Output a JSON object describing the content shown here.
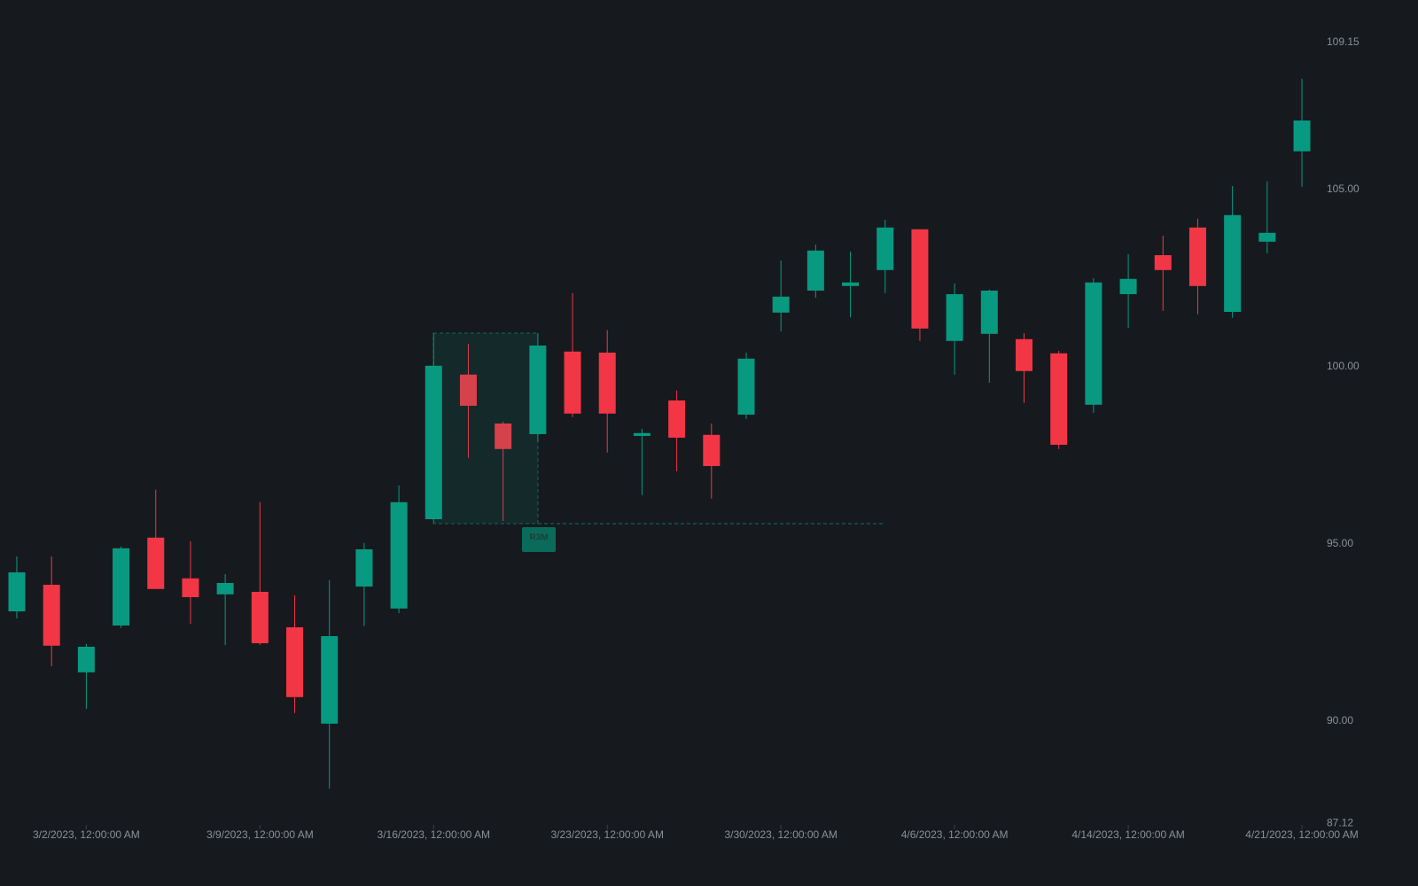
{
  "chart_data": {
    "type": "candlestick",
    "categories": [
      null,
      null,
      "3/2/2023, 12:00:00 AM",
      null,
      null,
      null,
      null,
      "3/9/2023, 12:00:00 AM",
      null,
      null,
      null,
      null,
      "3/16/2023, 12:00:00 AM",
      null,
      null,
      null,
      null,
      "3/23/2023, 12:00:00 AM",
      null,
      null,
      null,
      null,
      "3/30/2023, 12:00:00 AM",
      null,
      null,
      null,
      null,
      "4/6/2023, 12:00:00 AM",
      null,
      null,
      null,
      null,
      "4/14/2023, 12:00:00 AM",
      null,
      null,
      null,
      null,
      "4/21/2023, 12:00:00 AM"
    ],
    "open": [
      93.1,
      93.85,
      91.38,
      92.7,
      95.18,
      94.03,
      93.58,
      93.65,
      92.65,
      89.93,
      93.8,
      93.18,
      95.7,
      99.78,
      98.4,
      98.1,
      100.43,
      100.4,
      98.05,
      99.05,
      98.08,
      98.65,
      101.53,
      102.15,
      102.28,
      102.73,
      103.88,
      100.73,
      100.93,
      100.78,
      100.38,
      98.93,
      102.05,
      103.15,
      103.93,
      101.55,
      103.53,
      106.08
    ],
    "high": [
      94.65,
      94.65,
      92.18,
      94.93,
      96.53,
      95.08,
      94.15,
      96.18,
      93.55,
      93.98,
      95.03,
      96.65,
      100.95,
      100.65,
      98.45,
      100.95,
      102.08,
      101.03,
      98.25,
      99.33,
      98.4,
      100.4,
      103.0,
      103.45,
      103.25,
      104.15,
      103.88,
      102.35,
      102.18,
      100.95,
      100.45,
      102.5,
      103.18,
      103.7,
      104.18,
      105.1,
      105.23,
      108.13
    ],
    "low": [
      92.9,
      91.55,
      90.35,
      92.63,
      93.73,
      92.75,
      92.15,
      92.15,
      90.23,
      88.1,
      92.68,
      93.05,
      95.6,
      97.43,
      95.65,
      97.9,
      98.58,
      97.58,
      96.38,
      97.05,
      96.28,
      98.53,
      101.0,
      101.95,
      101.4,
      102.08,
      100.73,
      99.78,
      99.55,
      98.98,
      97.68,
      98.7,
      101.1,
      101.58,
      101.48,
      101.38,
      103.2,
      105.08
    ],
    "close": [
      94.2,
      92.13,
      92.1,
      94.88,
      93.73,
      93.5,
      93.9,
      92.2,
      90.68,
      92.4,
      94.85,
      96.18,
      100.03,
      98.9,
      97.68,
      100.6,
      98.68,
      98.68,
      98.13,
      98.0,
      97.2,
      100.23,
      101.98,
      103.28,
      102.38,
      103.93,
      101.08,
      102.05,
      102.15,
      99.88,
      97.8,
      102.38,
      102.48,
      102.73,
      102.28,
      104.28,
      103.78,
      106.95
    ],
    "up_color": "#089981",
    "down_color": "#f23645",
    "ylim": [
      87.12,
      109.15
    ],
    "yticks": [
      {
        "value": 87.12,
        "label": "87.12"
      },
      {
        "value": 90,
        "label": "90.00"
      },
      {
        "value": 95,
        "label": "95.00"
      },
      {
        "value": 100,
        "label": "100.00"
      },
      {
        "value": 105,
        "label": "105.00"
      },
      {
        "value": 109.15,
        "label": "109.15"
      }
    ],
    "annotation": "R3M"
  }
}
